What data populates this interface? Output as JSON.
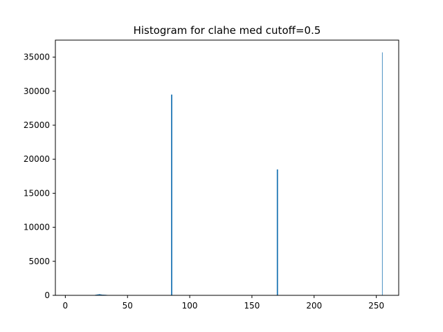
{
  "chart_data": {
    "type": "bar",
    "title": "Histogram for clahe med cutoff=0.5",
    "xlabel": "",
    "ylabel": "",
    "xlim": [
      -8,
      268
    ],
    "ylim": [
      0,
      37500
    ],
    "xticks": [
      0,
      50,
      100,
      150,
      200,
      250
    ],
    "yticks": [
      0,
      5000,
      10000,
      15000,
      20000,
      25000,
      30000,
      35000
    ],
    "grid": false,
    "bar_color": "#1f77b4",
    "bins": [
      {
        "x": 23,
        "width": 1,
        "value": 40
      },
      {
        "x": 24,
        "width": 1,
        "value": 90
      },
      {
        "x": 25,
        "width": 1,
        "value": 120
      },
      {
        "x": 26,
        "width": 1,
        "value": 150
      },
      {
        "x": 27,
        "width": 1,
        "value": 180
      },
      {
        "x": 28,
        "width": 1,
        "value": 140
      },
      {
        "x": 29,
        "width": 1,
        "value": 110
      },
      {
        "x": 30,
        "width": 1,
        "value": 100
      },
      {
        "x": 31,
        "width": 1,
        "value": 90
      },
      {
        "x": 32,
        "width": 1,
        "value": 80
      },
      {
        "x": 33,
        "width": 1,
        "value": 60
      },
      {
        "x": 85,
        "width": 1,
        "value": 29500
      },
      {
        "x": 170,
        "width": 1,
        "value": 18500
      },
      {
        "x": 254.6,
        "width": 0.4,
        "value": 35700
      }
    ]
  }
}
